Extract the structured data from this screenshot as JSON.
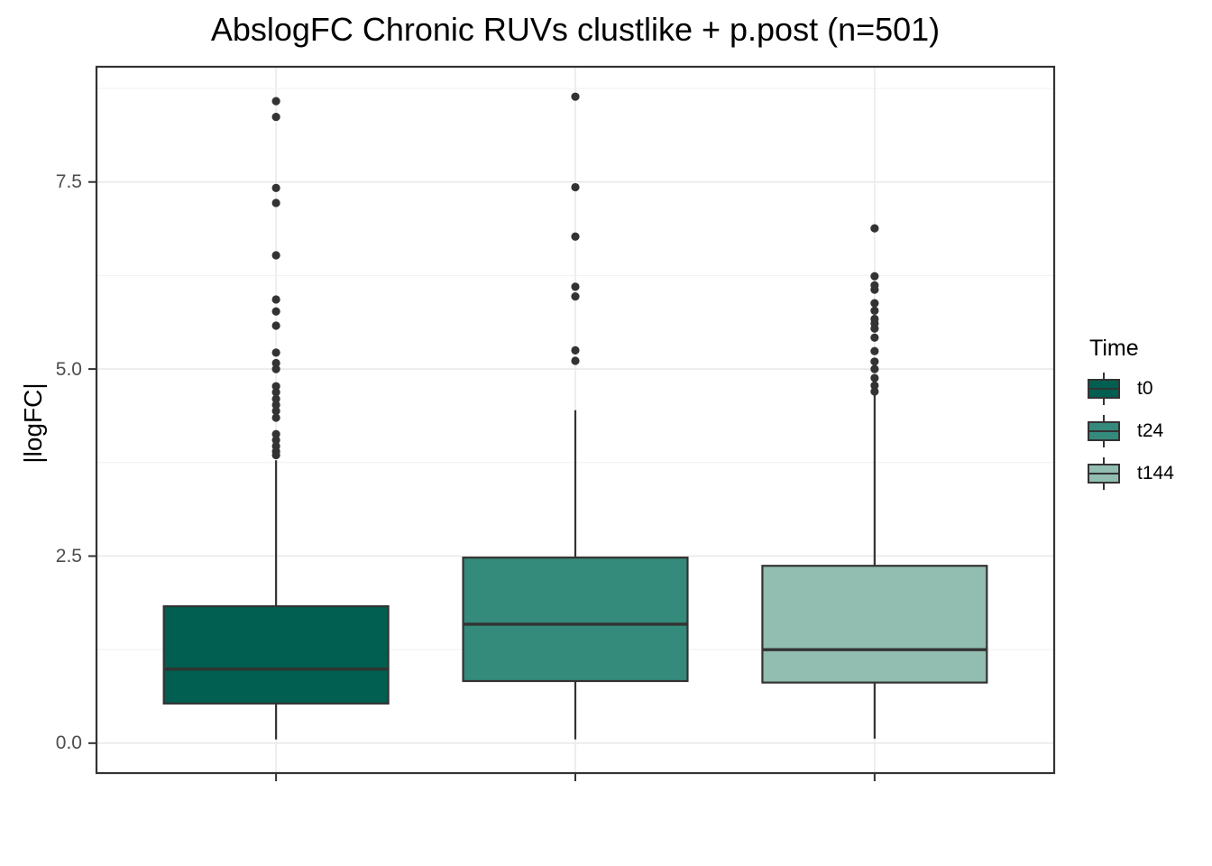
{
  "title": "AbslogFC Chronic RUVs clustlike + p.post (n=501)",
  "y_axis": {
    "label": "|logFC|",
    "tick_labels": [
      "0.0",
      "2.5",
      "5.0",
      "7.5"
    ],
    "tick_values": [
      0.0,
      2.5,
      5.0,
      7.5
    ],
    "minor_tick_values": [
      1.25,
      3.75,
      6.25,
      8.75
    ]
  },
  "x_axis": {
    "tick_labels": [
      "",
      "",
      ""
    ]
  },
  "legend": {
    "title": "Time",
    "items": [
      {
        "label": "t0",
        "color": "#005F50"
      },
      {
        "label": "t24",
        "color": "#348A7B"
      },
      {
        "label": "t144",
        "color": "#92BDB1"
      }
    ]
  },
  "colors": {
    "line": "#333333",
    "grid_major": "#e9e9e9",
    "grid_minor": "#f1f1f1",
    "tick_text": "#4d4d4d",
    "panel_border": "#333333"
  },
  "chart_data": {
    "type": "boxplot",
    "title": "AbslogFC Chronic RUVs clustlike + p.post (n=501)",
    "xlabel": "",
    "ylabel": "|logFC|",
    "ylim": [
      -0.4,
      9.04
    ],
    "grid": true,
    "legend_position": "right",
    "legend_title": "Time",
    "n": 501,
    "categories": [
      "t0",
      "t24",
      "t144"
    ],
    "groups": [
      {
        "name": "t0",
        "fill": "#005F50",
        "whisker_low": 0.05,
        "q1": 0.53,
        "median": 0.99,
        "q3": 1.83,
        "whisker_high": 3.78,
        "outliers": [
          3.85,
          3.9,
          3.97,
          4.05,
          4.13,
          4.35,
          4.44,
          4.52,
          4.6,
          4.69,
          4.77,
          5.0,
          5.08,
          5.22,
          5.58,
          5.77,
          5.93,
          6.52,
          7.22,
          7.42,
          8.37,
          8.58
        ]
      },
      {
        "name": "t24",
        "fill": "#348A7B",
        "whisker_low": 0.05,
        "q1": 0.83,
        "median": 1.59,
        "q3": 2.48,
        "whisker_high": 4.45,
        "outliers": [
          5.11,
          5.25,
          5.97,
          6.1,
          6.77,
          7.43,
          8.64
        ]
      },
      {
        "name": "t144",
        "fill": "#92BDB1",
        "whisker_low": 0.06,
        "q1": 0.81,
        "median": 1.25,
        "q3": 2.37,
        "whisker_high": 4.66,
        "outliers": [
          4.7,
          4.78,
          4.88,
          5.0,
          5.1,
          5.24,
          5.42,
          5.54,
          5.61,
          5.67,
          5.78,
          5.88,
          6.06,
          6.12,
          6.24,
          6.88
        ]
      }
    ]
  }
}
